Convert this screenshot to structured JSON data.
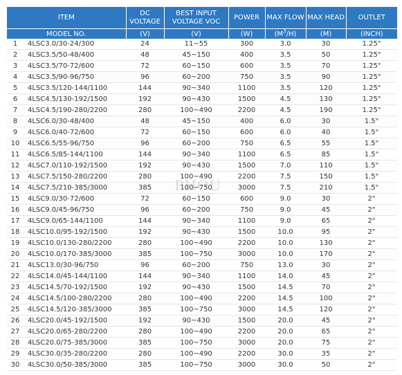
{
  "header": {
    "item": "ITEM",
    "dc_voltage": "DC VOLTAGE",
    "best_input_line1": "BEST INPUT",
    "best_input_line2": "VOLTAGE VOC",
    "power": "POWER",
    "max_flow": "MAX FLOW",
    "max_head": "MAX HEAD",
    "outlet": "OUTLET"
  },
  "subheader": {
    "model_no": "MODEL NO.",
    "dc_unit": "(V)",
    "best_unit": "(V)",
    "power_unit": "(W)",
    "flow_unit_pre": "(M",
    "flow_unit_sup": "3",
    "flow_unit_post": "/H)",
    "head_unit": "(M)",
    "outlet_unit": "(INCH)"
  },
  "watermark": "PHOU",
  "rows": [
    [
      "1",
      "4LSC3.0/30-24/300",
      "24",
      "11~55",
      "300",
      "3.0",
      "30",
      "1.25\""
    ],
    [
      "2",
      "4LSC3.5/50-48/400",
      "48",
      "45~150",
      "400",
      "3.5",
      "50",
      "1.25\""
    ],
    [
      "3",
      "4LSC3.5/70-72/600",
      "72",
      "60~150",
      "600",
      "3.5",
      "70",
      "1.25\""
    ],
    [
      "4",
      "4LSC3.5/90-96/750",
      "96",
      "60~200",
      "750",
      "3.5",
      "90",
      "1.25\""
    ],
    [
      "5",
      "4LSC3.5/120-144/1100",
      "144",
      "90~340",
      "1100",
      "3.5",
      "120",
      "1.25\""
    ],
    [
      "6",
      "4LSC4.5/130-192/1500",
      "192",
      "90~430",
      "1500",
      "4.5",
      "130",
      "1.25\""
    ],
    [
      "7",
      "4LSC4.5/190-280/2200",
      "280",
      "100~490",
      "2200",
      "4.5",
      "190",
      "1.25\""
    ],
    [
      "8",
      "4LSC6.0/30-48/400",
      "48",
      "45~150",
      "400",
      "6.0",
      "30",
      "1.5\""
    ],
    [
      "9",
      "4LSC6.0/40-72/600",
      "72",
      "60~150",
      "600",
      "6.0",
      "40",
      "1.5\""
    ],
    [
      "10",
      "4LSC6.5/55-96/750",
      "96",
      "60~200",
      "750",
      "6.5",
      "55",
      "1.5\""
    ],
    [
      "11",
      "4LSC6.5/85-144/1100",
      "144",
      "90~340",
      "1100",
      "6.5",
      "85",
      "1.5\""
    ],
    [
      "12",
      "4LSC7.0/110-192/1500",
      "192",
      "90~430",
      "1500",
      "7.0",
      "110",
      "1.5\""
    ],
    [
      "13",
      "4LSC7.5/150-280/2200",
      "280",
      "100~490",
      "2200",
      "7.5",
      "150",
      "1.5\""
    ],
    [
      "14",
      "4LSC7.5/210-385/3000",
      "385",
      "100~750",
      "3000",
      "7.5",
      "210",
      "1.5\""
    ],
    [
      "15",
      "4LSC9.0/30-72/600",
      "72",
      "60~150",
      "600",
      "9.0",
      "30",
      "2\""
    ],
    [
      "16",
      "4LSC9.0/45-96/750",
      "96",
      "60~200",
      "750",
      "9.0",
      "45",
      "2\""
    ],
    [
      "17",
      "4LSC9.0/65-144/1100",
      "144",
      "90~340",
      "1100",
      "9.0",
      "65",
      "2\""
    ],
    [
      "18",
      "4LSC10.0/95-192/1500",
      "192",
      "90~430",
      "1500",
      "10.0",
      "95",
      "2\""
    ],
    [
      "19",
      "4LSC10.0/130-280/2200",
      "280",
      "100~490",
      "2200",
      "10.0",
      "130",
      "2\""
    ],
    [
      "20",
      "4LSC10.0/170-385/3000",
      "385",
      "100~750",
      "3000",
      "10.0",
      "170",
      "2\""
    ],
    [
      "21",
      "4LSC13.0/30-96/750",
      "96",
      "60~200",
      "750",
      "13.0",
      "30",
      "2\""
    ],
    [
      "22",
      "4LSC14.0/45-144/1100",
      "144",
      "90~340",
      "1100",
      "14.0",
      "45",
      "2\""
    ],
    [
      "23",
      "4LSC14.5/70-192/1500",
      "192",
      "90~430",
      "1500",
      "14.5",
      "70",
      "2\""
    ],
    [
      "24",
      "4LSC14.5/100-280/2200",
      "280",
      "100~490",
      "2200",
      "14.5",
      "100",
      "2\""
    ],
    [
      "25",
      "4LSC14.5/120-385/3000",
      "385",
      "100~750",
      "3000",
      "14.5",
      "120",
      "2\""
    ],
    [
      "26",
      "4LSC20.0/45-192/1500",
      "192",
      "90~430",
      "1500",
      "20.0",
      "45",
      "2\""
    ],
    [
      "27",
      "4LSC20.0/65-280/2200",
      "280",
      "100~490",
      "2200",
      "20.0",
      "65",
      "2\""
    ],
    [
      "28",
      "4LSC20.0/75-385/3000",
      "385",
      "100~750",
      "3000",
      "20.0",
      "75",
      "2\""
    ],
    [
      "29",
      "4LSC30.0/35-280/2200",
      "280",
      "100~490",
      "2200",
      "30.0",
      "35",
      "2\""
    ],
    [
      "30",
      "4LSC30.0/50-385/3000",
      "385",
      "100~750",
      "3000",
      "30.0",
      "50",
      "2\""
    ]
  ]
}
